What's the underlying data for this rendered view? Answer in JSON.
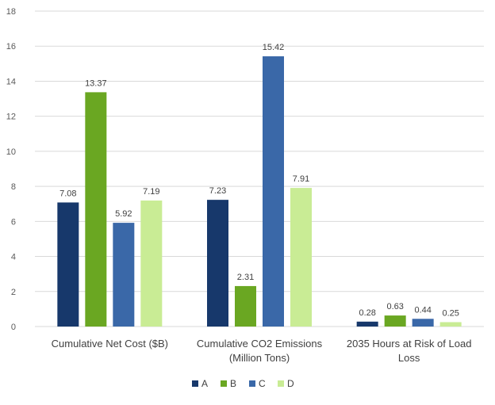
{
  "chart_data": {
    "type": "bar",
    "title": "",
    "xlabel": "",
    "ylabel": "",
    "ylim": [
      0,
      18
    ],
    "yticks": [
      0,
      2,
      4,
      6,
      8,
      10,
      12,
      14,
      16,
      18
    ],
    "grid": true,
    "legend_position": "bottom",
    "categories": [
      [
        "Cumulative Net Cost ($B)"
      ],
      [
        "Cumulative CO2 Emissions",
        "(Million Tons)"
      ],
      [
        "2035 Hours at Risk of Load",
        "Loss"
      ]
    ],
    "series": [
      {
        "name": "A",
        "color": "#17386b",
        "values": [
          7.08,
          7.23,
          0.28
        ],
        "labels": [
          "7.08",
          "7.23",
          "0.28"
        ]
      },
      {
        "name": "B",
        "color": "#6aa722",
        "values": [
          13.37,
          2.31,
          0.63
        ],
        "labels": [
          "13.37",
          "2.31",
          "0.63"
        ]
      },
      {
        "name": "C",
        "color": "#3a68a8",
        "values": [
          5.92,
          15.42,
          0.44
        ],
        "labels": [
          "5.92",
          "15.42",
          "0.44"
        ]
      },
      {
        "name": "D",
        "color": "#c9ec95",
        "values": [
          7.19,
          7.91,
          0.25
        ],
        "labels": [
          "7.19",
          "7.91",
          "0.25"
        ]
      }
    ]
  }
}
